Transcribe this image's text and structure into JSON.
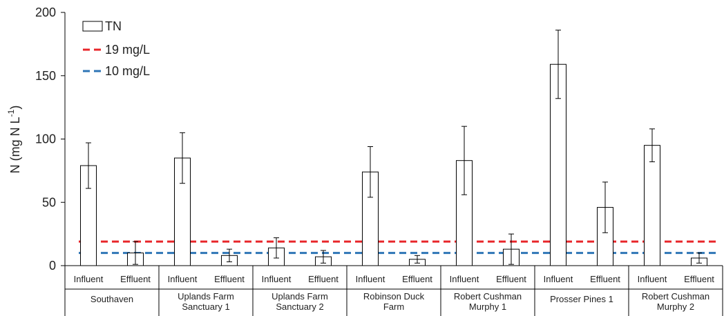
{
  "chart_data": {
    "type": "bar",
    "ylabel": "N (mg N L",
    "ylabel_sup": "-1",
    "ylabel_end": ")",
    "ylim": [
      0,
      200
    ],
    "yticks": [
      "0",
      "50",
      "100",
      "150",
      "200"
    ],
    "ytick_values": [
      0,
      50,
      100,
      150,
      200
    ],
    "grid": false,
    "legend_position": "top-left",
    "groups": [
      {
        "name": "Southaven",
        "bars": [
          {
            "label": "Influent",
            "value": 79,
            "err": 18
          },
          {
            "label": "Effluent",
            "value": 10,
            "err": 9
          }
        ]
      },
      {
        "name": "Uplands Farm Sanctuary 1",
        "bars": [
          {
            "label": "Influent",
            "value": 85,
            "err": 20
          },
          {
            "label": "Effluent",
            "value": 8,
            "err": 5
          }
        ]
      },
      {
        "name": "Uplands Farm Sanctuary 2",
        "bars": [
          {
            "label": "Influent",
            "value": 14,
            "err": 8
          },
          {
            "label": "Effluent",
            "value": 7,
            "err": 5
          }
        ]
      },
      {
        "name": "Robinson Duck Farm",
        "bars": [
          {
            "label": "Influent",
            "value": 74,
            "err": 20
          },
          {
            "label": "Effluent",
            "value": 5,
            "err": 3
          }
        ]
      },
      {
        "name": "Robert Cushman Murphy 1",
        "bars": [
          {
            "label": "Influent",
            "value": 83,
            "err": 27
          },
          {
            "label": "Effluent",
            "value": 13,
            "err": 12
          }
        ]
      },
      {
        "name": "Prosser Pines 1",
        "bars": [
          {
            "label": "Influent",
            "value": 159,
            "err": 27
          },
          {
            "label": "Effluent",
            "value": 46,
            "err": 20
          }
        ]
      },
      {
        "name": "Robert Cushman Murphy 2",
        "bars": [
          {
            "label": "Influent",
            "value": 95,
            "err": 13
          },
          {
            "label": "Effluent",
            "value": 6,
            "err": 4
          }
        ]
      }
    ],
    "reference_lines": [
      {
        "name": "19 mg/L",
        "value": 19,
        "color": "#e8262a"
      },
      {
        "name": "10 mg/L",
        "value": 10,
        "color": "#2e75b6"
      }
    ],
    "legend": [
      {
        "name": "TN",
        "kind": "bar"
      },
      {
        "name": "19 mg/L",
        "kind": "dash",
        "color": "#e8262a"
      },
      {
        "name": "10 mg/L",
        "kind": "dash",
        "color": "#2e75b6"
      }
    ],
    "colors": {
      "bar_fill": "#ffffff",
      "bar_stroke": "#000000",
      "axis": "#000000"
    }
  }
}
